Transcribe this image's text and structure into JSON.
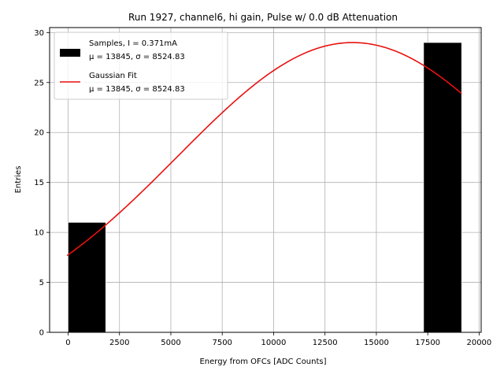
{
  "chart_data": {
    "type": "bar",
    "title": "Run 1927, channel6, hi gain, Pulse w/ 0.0 dB Attenuation",
    "xlabel": "Energy from OFCs [ADC Counts]",
    "ylabel": "Entries",
    "xlim": [
      -900,
      20100
    ],
    "ylim": [
      0,
      30.5
    ],
    "xticks": [
      0,
      2500,
      5000,
      7500,
      10000,
      12500,
      15000,
      17500,
      20000
    ],
    "xtick_labels": [
      "0",
      "2500",
      "5000",
      "7500",
      "10000",
      "12500",
      "15000",
      "17500",
      "20000"
    ],
    "yticks": [
      0,
      5,
      10,
      15,
      20,
      25,
      30
    ],
    "ytick_labels": [
      "0",
      "5",
      "10",
      "15",
      "20",
      "25",
      "30"
    ],
    "grid": true,
    "legend_position": "top-left",
    "bars": [
      {
        "x_start": 0,
        "x_end": 1830,
        "value": 11
      },
      {
        "x_start": 17300,
        "x_end": 19150,
        "value": 29
      }
    ],
    "series": [
      {
        "name": "Samples, I = 0.371mA",
        "name_line2": "μ = 13845, σ = 8524.83",
        "kind": "histogram",
        "color": "#000000"
      },
      {
        "name": "Gaussian Fit",
        "name_line2": "μ = 13845, σ = 8524.83",
        "kind": "line",
        "color": "#e8110f",
        "amplitude": 29,
        "mu": 13845,
        "sigma": 8524.83,
        "x_range": [
          -50,
          19150
        ]
      }
    ]
  }
}
